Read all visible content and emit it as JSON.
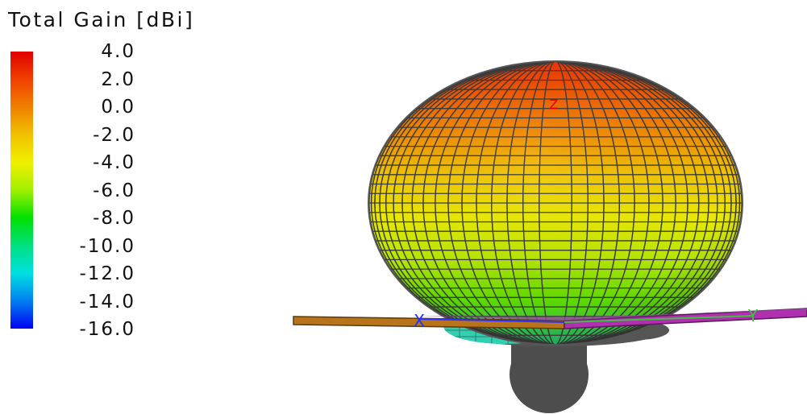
{
  "legend": {
    "title": "Total Gain [dBi]",
    "ticks": [
      "4.0",
      "2.0",
      "0.0",
      "-2.0",
      "-4.0",
      "-6.0",
      "-8.0",
      "-10.0",
      "-12.0",
      "-14.0",
      "-16.0"
    ],
    "range": [
      -16.0,
      4.0
    ],
    "colors": [
      "#e00000",
      "#f04000",
      "#f08000",
      "#f0c000",
      "#f0f000",
      "#a0f000",
      "#00e000",
      "#00e080",
      "#00e0e0",
      "#0080f0",
      "#0000f0"
    ]
  },
  "axes": {
    "x_label": "X",
    "y_label": "Y",
    "z_label": "Z",
    "x_color": "#3030ff",
    "y_color": "#40c040",
    "z_color": "#e00000"
  },
  "antenna": {
    "plate_left_color": "#b8741a",
    "plate_right_color": "#b030b0",
    "lower_lobe_color": "#4d4d4d"
  }
}
